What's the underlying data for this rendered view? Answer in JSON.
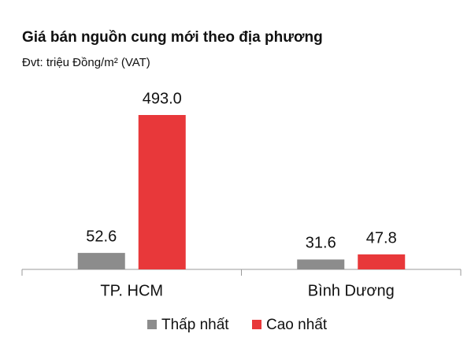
{
  "chart_data": {
    "type": "bar",
    "title": "Giá bán nguồn cung mới theo địa phương",
    "subtitle": "Đvt: triệu Đồng/m² (VAT)",
    "categories": [
      "TP. HCM",
      "Bình Dương"
    ],
    "series": [
      {
        "name": "Thấp nhất",
        "color": "#8c8c8c",
        "values": [
          52.6,
          31.6
        ]
      },
      {
        "name": "Cao nhất",
        "color": "#e8383a",
        "values": [
          493.0,
          47.8
        ],
        "value_labels": [
          "493.0",
          "47.8"
        ]
      }
    ],
    "legend": "bottom"
  }
}
